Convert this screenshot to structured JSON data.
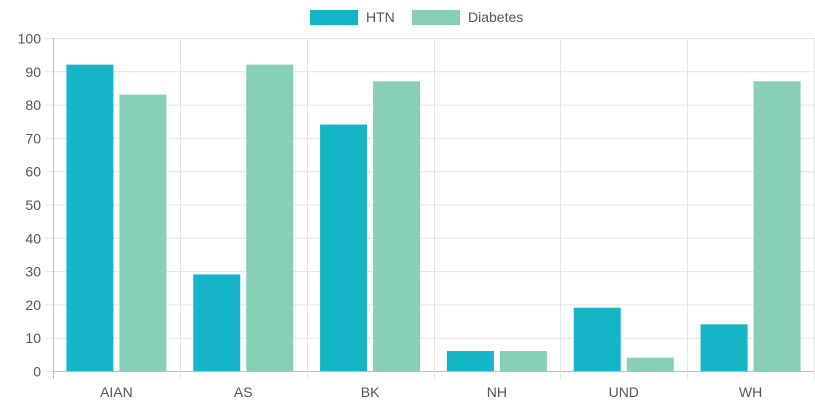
{
  "chart_data": {
    "type": "bar",
    "categories": [
      "AIAN",
      "AS",
      "BK",
      "NH",
      "UND",
      "WH"
    ],
    "series": [
      {
        "name": "HTN",
        "color": "#13b5c6",
        "values": [
          92,
          29,
          74,
          6,
          19,
          14
        ]
      },
      {
        "name": "Diabetes",
        "color": "#88cfb8",
        "values": [
          83,
          92,
          87,
          6,
          4,
          87
        ]
      }
    ],
    "ylim": [
      0,
      100
    ],
    "yticks": [
      0,
      10,
      20,
      30,
      40,
      50,
      60,
      70,
      80,
      90,
      100
    ],
    "grid": true,
    "legend_position": "top-center",
    "gridColor": "#e4e4e4",
    "axisColor": "#bdbdbd"
  }
}
